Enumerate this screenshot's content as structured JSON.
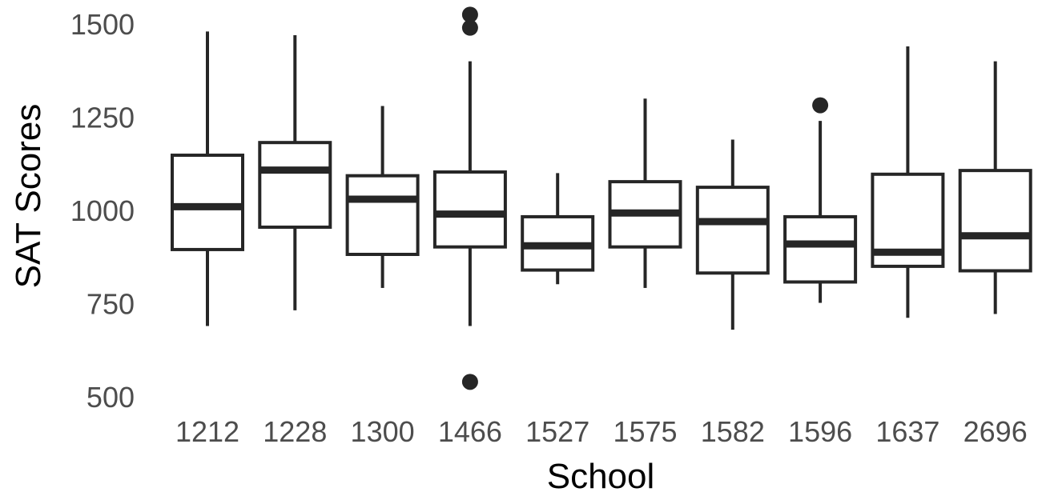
{
  "chart_data": {
    "type": "boxplot",
    "title": "",
    "xlabel": "School",
    "ylabel": "SAT Scores",
    "ylim": [
      480,
      1540
    ],
    "y_ticks": [
      500,
      750,
      1000,
      1250,
      1500
    ],
    "y_tick_labels": [
      "500",
      "750",
      "1000",
      "1250",
      "1500"
    ],
    "grid": false,
    "legend": "none",
    "colors": {
      "box_stroke": "#262626",
      "box_fill": "#ffffff",
      "outlier": "#262626",
      "tick_text": "#4d4d4d"
    },
    "categories": [
      "1212",
      "1228",
      "1300",
      "1466",
      "1527",
      "1575",
      "1582",
      "1596",
      "1637",
      "2696"
    ],
    "boxes": [
      {
        "school": "1212",
        "whisker_low": 690,
        "q1": 895,
        "median": 1010,
        "q3": 1148,
        "whisker_high": 1480,
        "outliers": []
      },
      {
        "school": "1228",
        "whisker_low": 732,
        "q1": 955,
        "median": 1108,
        "q3": 1182,
        "whisker_high": 1470,
        "outliers": []
      },
      {
        "school": "1300",
        "whisker_low": 792,
        "q1": 882,
        "median": 1030,
        "q3": 1093,
        "whisker_high": 1280,
        "outliers": []
      },
      {
        "school": "1466",
        "whisker_low": 690,
        "q1": 902,
        "median": 990,
        "q3": 1103,
        "whisker_high": 1400,
        "outliers": [
          540,
          1490,
          1525
        ]
      },
      {
        "school": "1527",
        "whisker_low": 802,
        "q1": 840,
        "median": 905,
        "q3": 983,
        "whisker_high": 1100,
        "outliers": []
      },
      {
        "school": "1575",
        "whisker_low": 792,
        "q1": 902,
        "median": 993,
        "q3": 1077,
        "whisker_high": 1300,
        "outliers": []
      },
      {
        "school": "1582",
        "whisker_low": 680,
        "q1": 832,
        "median": 970,
        "q3": 1062,
        "whisker_high": 1190,
        "outliers": []
      },
      {
        "school": "1596",
        "whisker_low": 752,
        "q1": 808,
        "median": 910,
        "q3": 983,
        "whisker_high": 1240,
        "outliers": [
          1282
        ]
      },
      {
        "school": "1637",
        "whisker_low": 712,
        "q1": 850,
        "median": 888,
        "q3": 1097,
        "whisker_high": 1440,
        "outliers": []
      },
      {
        "school": "2696",
        "whisker_low": 722,
        "q1": 838,
        "median": 932,
        "q3": 1107,
        "whisker_high": 1400,
        "outliers": []
      }
    ]
  }
}
